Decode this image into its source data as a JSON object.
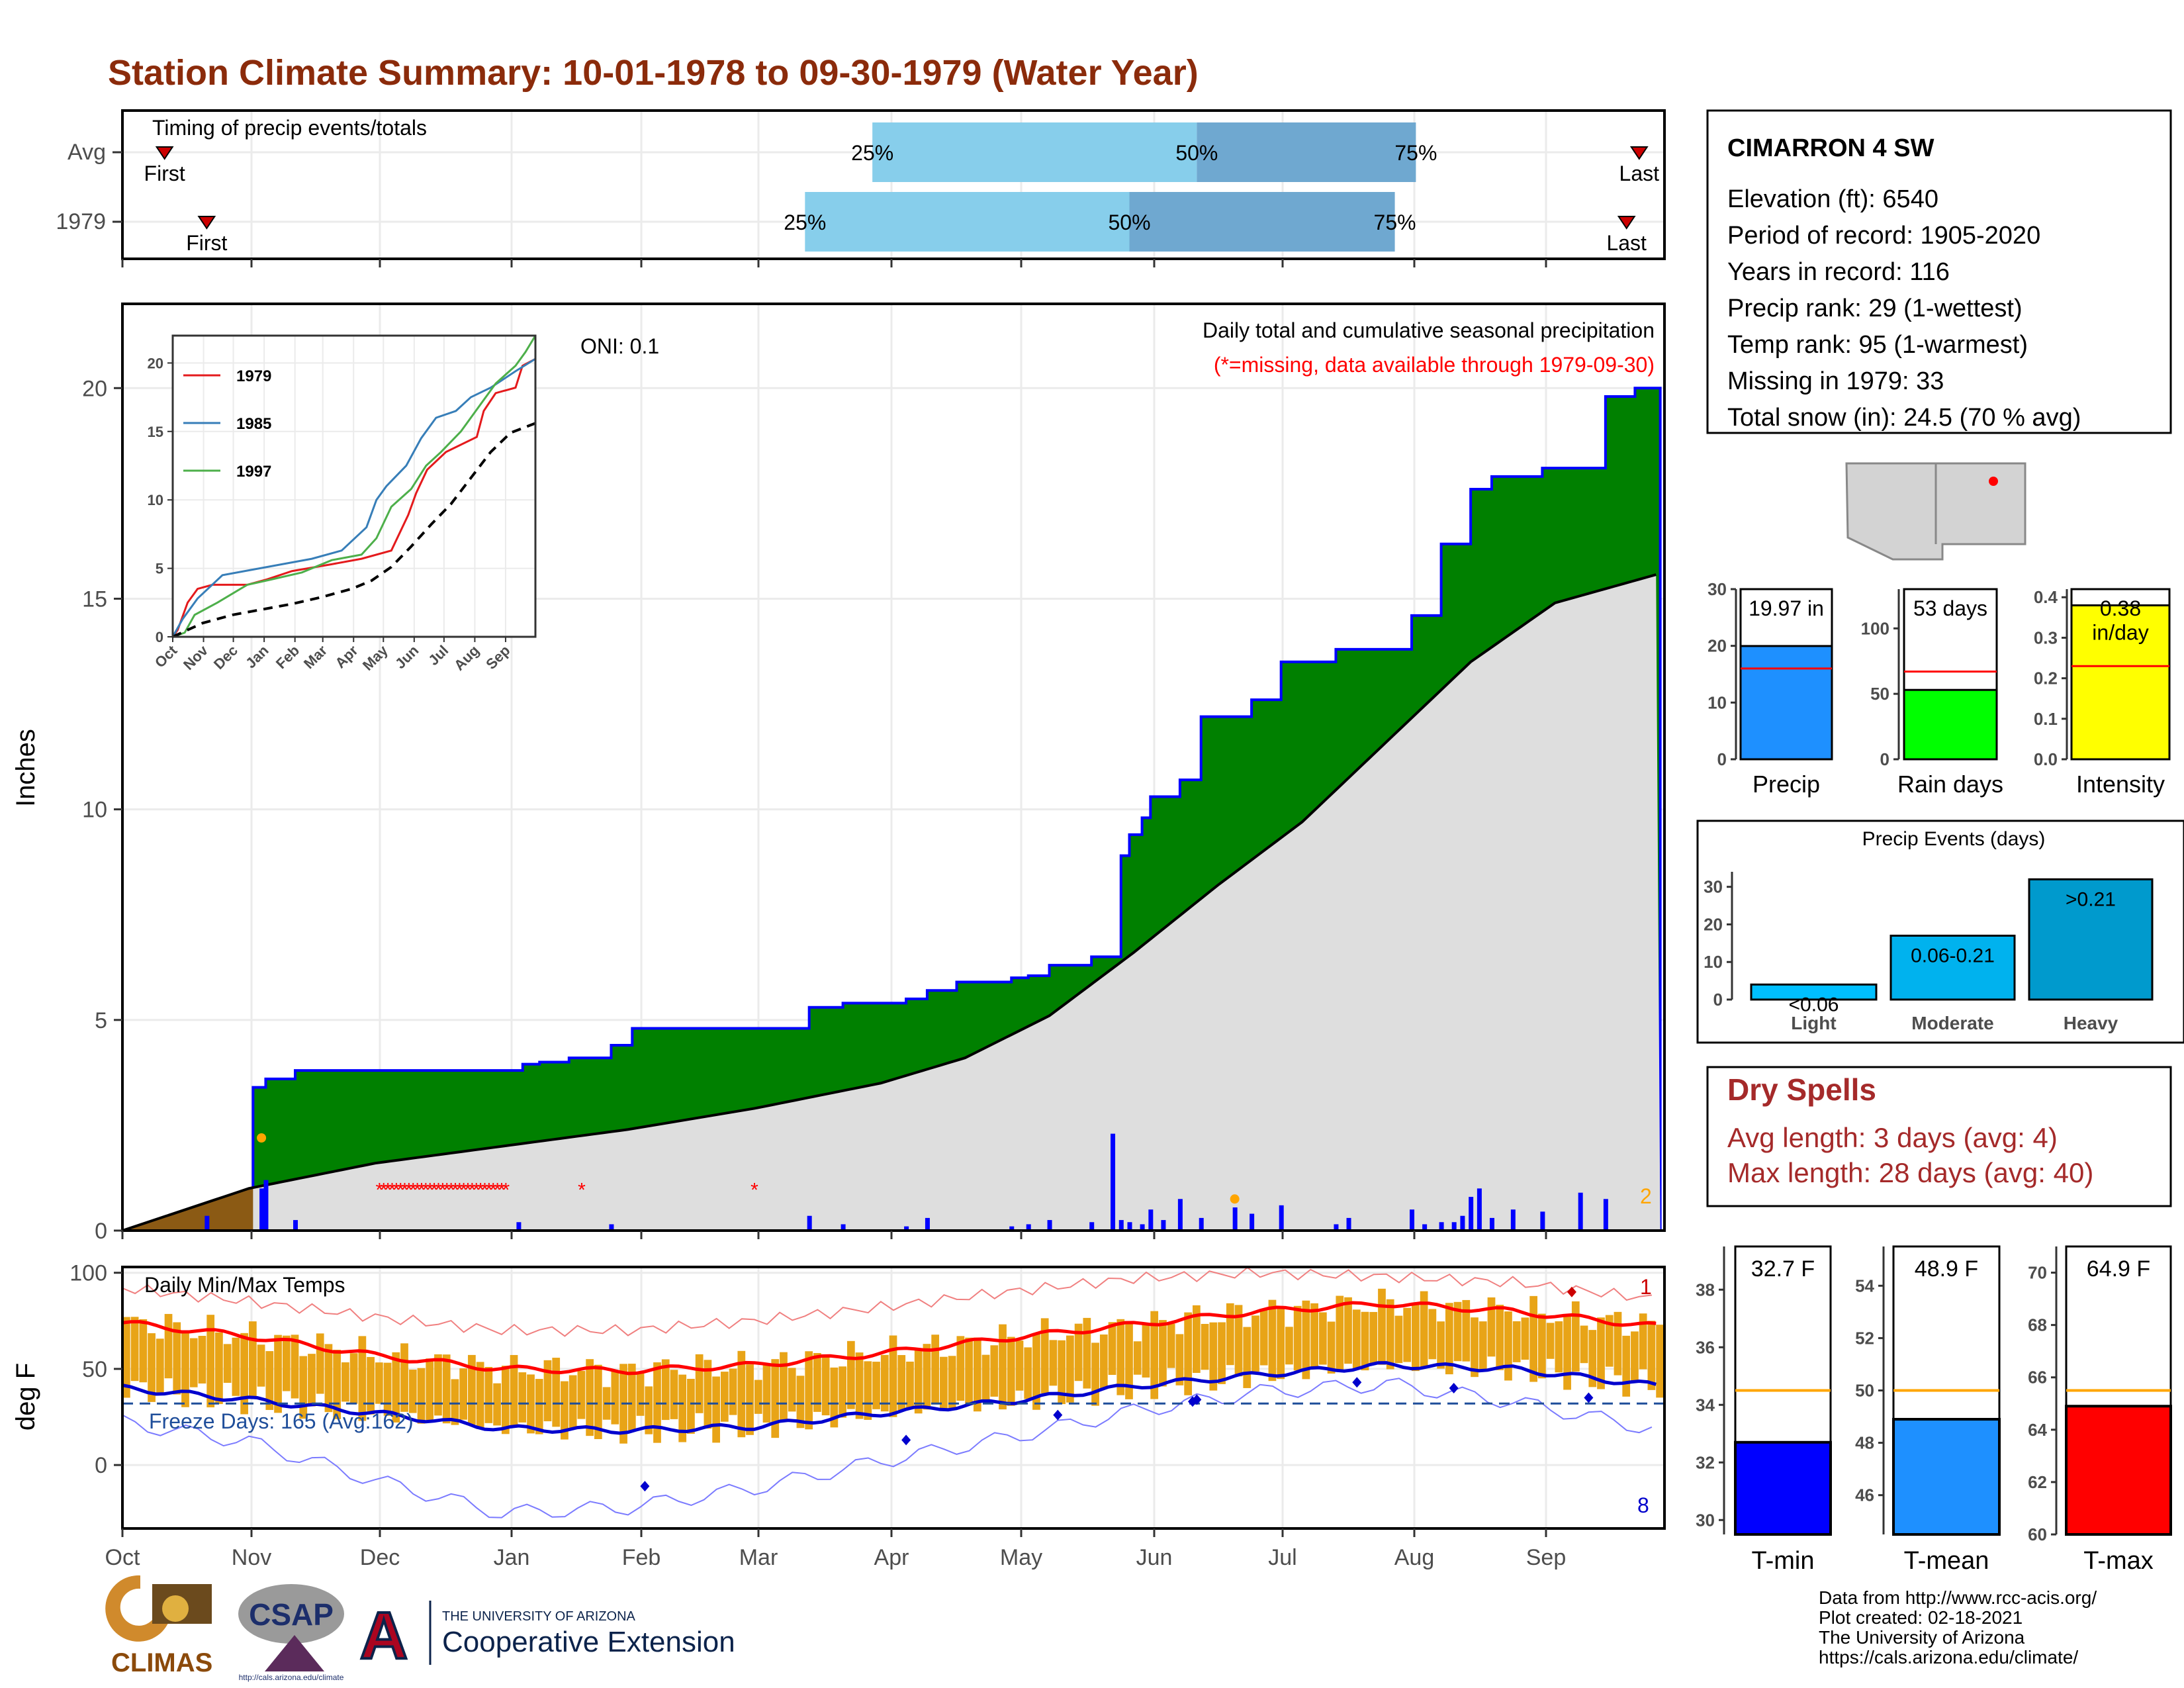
{
  "title": "Station Climate Summary: 10-01-1978 to 09-30-1979 (Water Year)",
  "colors": {
    "title": "#8b2b0b",
    "cumulative_fill": "#008000",
    "cumulative_line": "#0000ff",
    "avg_fill": "#dedede",
    "early_fill": "#8b5a14",
    "daily_bar": "#0000ff",
    "tmax": "#ff0000",
    "tmin": "#0000cd",
    "temp_range": "#e8a417",
    "quartile_light": "#87ceeb",
    "quartile_dark": "#6fa8d0",
    "dry_spells": "#a52a2a"
  },
  "timing": {
    "title": "Timing of precip events/totals",
    "rows": [
      {
        "label": "Avg",
        "first": "First",
        "last": "Last",
        "q25": "25%",
        "q50": "50%",
        "q75": "75%",
        "first_day": 10,
        "last_day": 360,
        "q25_day": 178,
        "q50_day": 255,
        "q75_day": 307
      },
      {
        "label": "1979",
        "first": "First",
        "last": "Last",
        "q25": "25%",
        "q50": "50%",
        "q75": "75%",
        "first_day": 20,
        "last_day": 357,
        "q25_day": 162,
        "q50_day": 239,
        "q75_day": 302
      }
    ]
  },
  "precip_panel": {
    "ylabel": "Inches",
    "title_line1": "Daily total and cumulative seasonal precipitation",
    "title_line2": "(*=missing, data available through 1979-09-30)",
    "oni": "ONI: 0.1",
    "count_label": "2",
    "y_ticks": [
      "0",
      "5",
      "10",
      "15",
      "20"
    ],
    "ylim": [
      0,
      22
    ],
    "x_ticks": [
      "Oct",
      "Nov",
      "Dec",
      "Jan",
      "Feb",
      "Mar",
      "Apr",
      "May",
      "Jun",
      "Jul",
      "Aug",
      "Sep"
    ]
  },
  "inset": {
    "legend": [
      "1979",
      "1985",
      "1997"
    ],
    "legend_colors": [
      "#e41a1c",
      "#377eb8",
      "#4daf4a"
    ],
    "y_ticks": [
      "0",
      "5",
      "10",
      "15",
      "20"
    ],
    "x_ticks": [
      "Oct",
      "Nov",
      "Dec",
      "Jan",
      "Feb",
      "Mar",
      "Apr",
      "May",
      "Jun",
      "Jul",
      "Aug",
      "Sep"
    ]
  },
  "temp_panel": {
    "ylabel": "deg F",
    "title": "Daily Min/Max Temps",
    "freeze_label": "Freeze Days: 165 (Avg:162)",
    "record_high_count": "1",
    "record_low_count": "8",
    "y_ticks": [
      "0",
      "50",
      "100"
    ],
    "ylim": [
      -33,
      103
    ],
    "x_ticks": [
      "Oct",
      "Nov",
      "Dec",
      "Jan",
      "Feb",
      "Mar",
      "Apr",
      "May",
      "Jun",
      "Jul",
      "Aug",
      "Sep"
    ]
  },
  "station": {
    "name": "CIMARRON 4 SW",
    "lines": [
      "Elevation (ft): 6540",
      "Period of record: 1905-2020",
      "Years in record: 116",
      "Precip rank: 29 (1-wettest)",
      "Temp rank: 95 (1-warmest)",
      "Missing in 1979: 33",
      "Total snow (in): 24.5 (70 % avg)"
    ]
  },
  "summary_bars": [
    {
      "label": "Precip",
      "value_text": "19.97 in",
      "value": 19.97,
      "avg": 16,
      "ylim": [
        0,
        30
      ],
      "ticks": [
        "0",
        "10",
        "20",
        "30"
      ],
      "color": "#1e90ff"
    },
    {
      "label": "Rain days",
      "value_text": "53 days",
      "value": 53,
      "avg": 67,
      "ylim": [
        0,
        130
      ],
      "ticks": [
        "0",
        "50",
        "100"
      ],
      "color": "#00ff00"
    },
    {
      "label": "Intensity",
      "value_text": "0.38",
      "unit": "in/day",
      "value": 0.38,
      "avg": 0.23,
      "ylim": [
        0,
        0.42
      ],
      "ticks": [
        "0.0",
        "0.1",
        "0.2",
        "0.3",
        "0.4"
      ],
      "color": "#ffff00"
    }
  ],
  "precip_events": {
    "title": "Precip Events (days)",
    "ticks": [
      "0",
      "10",
      "20",
      "30"
    ],
    "bars": [
      {
        "label": "Light",
        "range": "<0.06",
        "value": 4,
        "color": "#00bfff"
      },
      {
        "label": "Moderate",
        "range": "0.06-0.21",
        "value": 17,
        "color": "#00b2ee"
      },
      {
        "label": "Heavy",
        "range": ">0.21",
        "value": 32,
        "color": "#009acd"
      }
    ]
  },
  "dry_spells": {
    "title": "Dry Spells",
    "line1": "Avg length: 3 days (avg: 4)",
    "line2": "Max length: 28 days (avg: 40)"
  },
  "temp_summary": [
    {
      "label": "T-min",
      "value_text": "32.7 F",
      "value": 32.7,
      "avg": 34.5,
      "ylim": [
        29.5,
        39.5
      ],
      "ticks": [
        "30",
        "32",
        "34",
        "36",
        "38"
      ],
      "color": "#0000ff"
    },
    {
      "label": "T-mean",
      "value_text": "48.9 F",
      "value": 48.9,
      "avg": 50,
      "ylim": [
        44.5,
        55.5
      ],
      "ticks": [
        "46",
        "48",
        "50",
        "52",
        "54"
      ],
      "color": "#1e90ff"
    },
    {
      "label": "T-max",
      "value_text": "64.9 F",
      "value": 64.9,
      "avg": 65.5,
      "ylim": [
        60,
        71
      ],
      "ticks": [
        "60",
        "62",
        "64",
        "66",
        "68",
        "70"
      ],
      "color": "#ff0000"
    }
  ],
  "footer": {
    "lines": [
      "Data from http://www.rcc-acis.org/",
      "Plot created: 02-18-2021",
      "The University of Arizona",
      "https://cals.arizona.edu/climate/"
    ]
  },
  "logos": {
    "climas": "CLIMAS",
    "csap": "CSAP",
    "csap_url": "http://cals.arizona.edu/climate",
    "ua_small": "THE UNIVERSITY OF ARIZONA",
    "ua_big": "Cooperative Extension",
    "ua_letter": "A"
  },
  "chart_data": {
    "type": "area",
    "title": "Daily total and cumulative seasonal precipitation",
    "ylabel": "Inches",
    "ylim": [
      0,
      22
    ],
    "cumulative_1979": [
      [
        0,
        0
      ],
      [
        30,
        0.2
      ],
      [
        31,
        3.4
      ],
      [
        34,
        3.6
      ],
      [
        41,
        3.8
      ],
      [
        94,
        3.8
      ],
      [
        95,
        3.95
      ],
      [
        99,
        4.0
      ],
      [
        106,
        4.1
      ],
      [
        116,
        4.4
      ],
      [
        121,
        4.8
      ],
      [
        162,
        4.8
      ],
      [
        163,
        5.3
      ],
      [
        171,
        5.4
      ],
      [
        186,
        5.5
      ],
      [
        191,
        5.7
      ],
      [
        198,
        5.9
      ],
      [
        210,
        5.9
      ],
      [
        211,
        6.0
      ],
      [
        215,
        6.05
      ],
      [
        220,
        6.3
      ],
      [
        225,
        6.3
      ],
      [
        230,
        6.5
      ],
      [
        237,
        8.9
      ],
      [
        239,
        9.4
      ],
      [
        242,
        9.8
      ],
      [
        244,
        10.3
      ],
      [
        251,
        10.7
      ],
      [
        256,
        12.2
      ],
      [
        268,
        12.6
      ],
      [
        275,
        13.5
      ],
      [
        288,
        13.8
      ],
      [
        306,
        14.6
      ],
      [
        313,
        16.3
      ],
      [
        320,
        17.6
      ],
      [
        325,
        17.9
      ],
      [
        337,
        18.1
      ],
      [
        346,
        18.1
      ],
      [
        352,
        19.8
      ],
      [
        359,
        20.0
      ],
      [
        365,
        20.0
      ]
    ],
    "average_cumulative": [
      [
        0,
        0
      ],
      [
        30,
        1.0
      ],
      [
        60,
        1.6
      ],
      [
        90,
        2.0
      ],
      [
        120,
        2.4
      ],
      [
        150,
        2.9
      ],
      [
        180,
        3.5
      ],
      [
        200,
        4.1
      ],
      [
        220,
        5.1
      ],
      [
        240,
        6.6
      ],
      [
        260,
        8.2
      ],
      [
        280,
        9.7
      ],
      [
        300,
        11.6
      ],
      [
        320,
        13.5
      ],
      [
        340,
        14.9
      ],
      [
        365,
        15.6
      ]
    ],
    "daily_events": [
      [
        20,
        0.35
      ],
      [
        33,
        1.0
      ],
      [
        34,
        1.2
      ],
      [
        41,
        0.25
      ],
      [
        94,
        0.2
      ],
      [
        116,
        0.15
      ],
      [
        163,
        0.35
      ],
      [
        171,
        0.15
      ],
      [
        186,
        0.1
      ],
      [
        191,
        0.3
      ],
      [
        211,
        0.1
      ],
      [
        215,
        0.15
      ],
      [
        220,
        0.25
      ],
      [
        230,
        0.2
      ],
      [
        235,
        2.3
      ],
      [
        237,
        0.25
      ],
      [
        239,
        0.2
      ],
      [
        242,
        0.15
      ],
      [
        244,
        0.5
      ],
      [
        247,
        0.25
      ],
      [
        251,
        0.75
      ],
      [
        256,
        0.3
      ],
      [
        264,
        0.55
      ],
      [
        268,
        0.4
      ],
      [
        275,
        0.6
      ],
      [
        288,
        0.15
      ],
      [
        291,
        0.3
      ],
      [
        306,
        0.5
      ],
      [
        309,
        0.15
      ],
      [
        313,
        0.2
      ],
      [
        316,
        0.2
      ],
      [
        318,
        0.35
      ],
      [
        320,
        0.8
      ],
      [
        322,
        1.0
      ],
      [
        325,
        0.3
      ],
      [
        330,
        0.5
      ],
      [
        337,
        0.45
      ],
      [
        346,
        0.9
      ],
      [
        352,
        0.75
      ]
    ],
    "missing_days": [
      61,
      62,
      63,
      64,
      65,
      66,
      67,
      68,
      69,
      70,
      71,
      72,
      73,
      74,
      75,
      76,
      77,
      78,
      79,
      80,
      81,
      82,
      83,
      84,
      85,
      86,
      87,
      88,
      89,
      90,
      91,
      109,
      150
    ],
    "inset_series": [
      {
        "name": "1979",
        "points": [
          [
            0,
            0
          ],
          [
            5,
            0.5
          ],
          [
            15,
            2.5
          ],
          [
            25,
            3.5
          ],
          [
            40,
            3.8
          ],
          [
            75,
            3.8
          ],
          [
            95,
            4.2
          ],
          [
            120,
            4.8
          ],
          [
            160,
            5.3
          ],
          [
            190,
            5.7
          ],
          [
            220,
            6.3
          ],
          [
            237,
            8.9
          ],
          [
            245,
            10.5
          ],
          [
            256,
            12.2
          ],
          [
            275,
            13.5
          ],
          [
            306,
            14.6
          ],
          [
            313,
            16.5
          ],
          [
            325,
            17.8
          ],
          [
            345,
            18.2
          ],
          [
            352,
            19.8
          ],
          [
            365,
            20.3
          ]
        ]
      },
      {
        "name": "1985",
        "points": [
          [
            0,
            0
          ],
          [
            10,
            1.3
          ],
          [
            25,
            2.8
          ],
          [
            50,
            4.5
          ],
          [
            80,
            4.9
          ],
          [
            110,
            5.3
          ],
          [
            140,
            5.7
          ],
          [
            170,
            6.3
          ],
          [
            195,
            8.0
          ],
          [
            205,
            10.0
          ],
          [
            215,
            11.0
          ],
          [
            235,
            12.5
          ],
          [
            250,
            14.5
          ],
          [
            265,
            16.0
          ],
          [
            285,
            16.5
          ],
          [
            300,
            17.5
          ],
          [
            320,
            18.2
          ],
          [
            345,
            19.4
          ],
          [
            365,
            20.3
          ]
        ]
      },
      {
        "name": "1997",
        "points": [
          [
            0,
            0
          ],
          [
            12,
            0.3
          ],
          [
            22,
            1.6
          ],
          [
            45,
            2.5
          ],
          [
            75,
            3.8
          ],
          [
            100,
            4.2
          ],
          [
            130,
            4.7
          ],
          [
            160,
            5.6
          ],
          [
            190,
            6.0
          ],
          [
            205,
            7.2
          ],
          [
            220,
            9.5
          ],
          [
            240,
            10.8
          ],
          [
            255,
            12.5
          ],
          [
            270,
            13.5
          ],
          [
            290,
            15.0
          ],
          [
            310,
            17.0
          ],
          [
            325,
            18.5
          ],
          [
            345,
            19.8
          ],
          [
            355,
            20.8
          ],
          [
            365,
            22.0
          ]
        ]
      },
      {
        "name": "average",
        "points": [
          [
            0,
            0
          ],
          [
            30,
            1.0
          ],
          [
            60,
            1.6
          ],
          [
            90,
            2.0
          ],
          [
            120,
            2.4
          ],
          [
            150,
            2.9
          ],
          [
            180,
            3.5
          ],
          [
            200,
            4.1
          ],
          [
            220,
            5.1
          ],
          [
            240,
            6.6
          ],
          [
            260,
            8.2
          ],
          [
            280,
            9.7
          ],
          [
            300,
            11.6
          ],
          [
            320,
            13.5
          ],
          [
            340,
            14.9
          ],
          [
            365,
            15.6
          ]
        ]
      }
    ],
    "temperature": {
      "ylim": [
        -33,
        103
      ],
      "tmax_smooth": [
        [
          0,
          74
        ],
        [
          30,
          67
        ],
        [
          60,
          57
        ],
        [
          90,
          50
        ],
        [
          120,
          49
        ],
        [
          150,
          52
        ],
        [
          180,
          58
        ],
        [
          210,
          66
        ],
        [
          240,
          73
        ],
        [
          270,
          80
        ],
        [
          300,
          84
        ],
        [
          330,
          80
        ],
        [
          365,
          72
        ]
      ],
      "tmin_smooth": [
        [
          0,
          40
        ],
        [
          30,
          34
        ],
        [
          60,
          27
        ],
        [
          90,
          19
        ],
        [
          120,
          18
        ],
        [
          150,
          20
        ],
        [
          180,
          27
        ],
        [
          210,
          33
        ],
        [
          240,
          41
        ],
        [
          270,
          47
        ],
        [
          300,
          52
        ],
        [
          330,
          50
        ],
        [
          365,
          41
        ]
      ],
      "record_max_env": [
        [
          0,
          92
        ],
        [
          30,
          85
        ],
        [
          60,
          77
        ],
        [
          90,
          70
        ],
        [
          120,
          70
        ],
        [
          150,
          75
        ],
        [
          180,
          82
        ],
        [
          210,
          90
        ],
        [
          240,
          97
        ],
        [
          270,
          100
        ],
        [
          300,
          98
        ],
        [
          330,
          95
        ],
        [
          365,
          86
        ]
      ],
      "record_min_env": [
        [
          0,
          22
        ],
        [
          30,
          12
        ],
        [
          60,
          -8
        ],
        [
          90,
          -25
        ],
        [
          120,
          -22
        ],
        [
          150,
          -12
        ],
        [
          180,
          2
        ],
        [
          210,
          14
        ],
        [
          240,
          28
        ],
        [
          270,
          38
        ],
        [
          300,
          42
        ],
        [
          330,
          33
        ],
        [
          365,
          18
        ]
      ],
      "freeze_threshold": 32,
      "markers_low": [
        [
          124,
          -11
        ],
        [
          186,
          13
        ],
        [
          222,
          26
        ],
        [
          254,
          33
        ],
        [
          255,
          34
        ],
        [
          293,
          43
        ],
        [
          316,
          40
        ],
        [
          348,
          35
        ]
      ],
      "markers_high": [
        [
          344,
          90
        ]
      ]
    }
  }
}
